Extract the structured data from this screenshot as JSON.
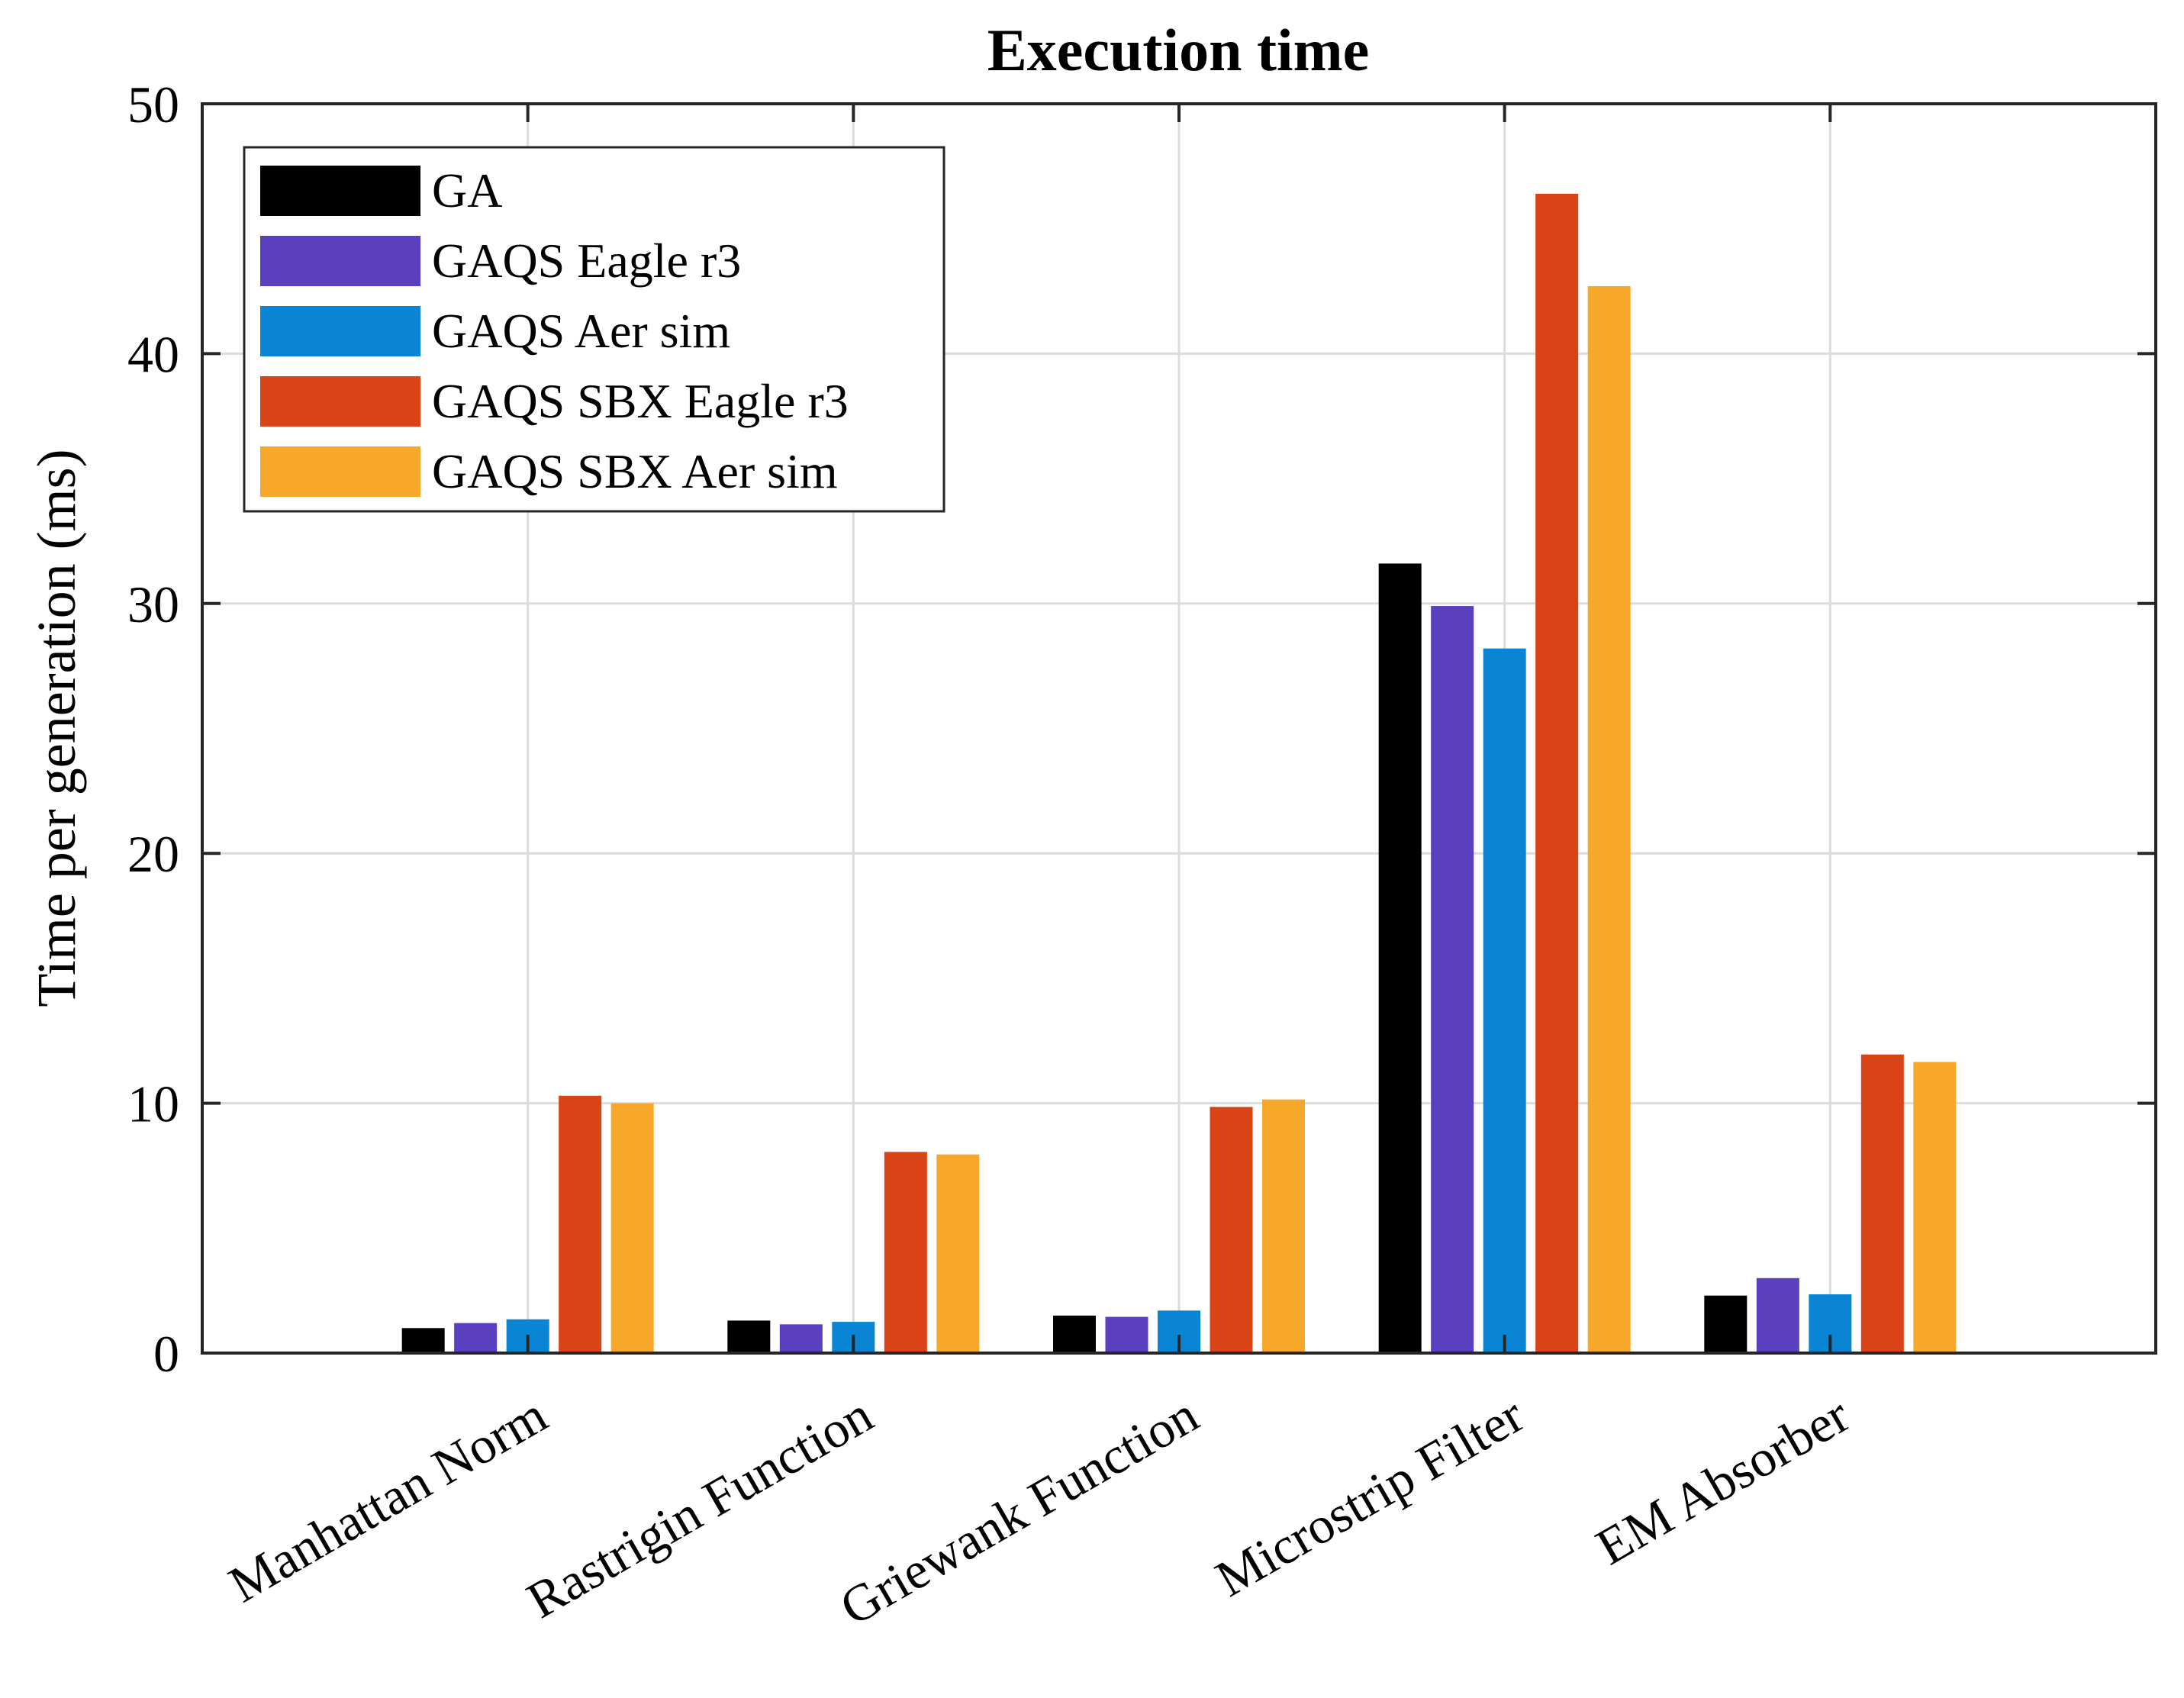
{
  "chart_data": {
    "type": "bar",
    "title": "Execution time",
    "xlabel": "",
    "ylabel": "Time per generation (ms)",
    "ylim": [
      0,
      50
    ],
    "yticks": [
      0,
      10,
      20,
      30,
      40,
      50
    ],
    "grid": true,
    "legend_position": "top-left",
    "categories": [
      "Manhattan Norm",
      "Rastrigin Function",
      "Griewank Function",
      "Microstrip Filter",
      "EM Absorber"
    ],
    "series": [
      {
        "name": "GA",
        "color": "#000000",
        "values": [
          1.0,
          1.3,
          1.5,
          31.6,
          2.3
        ]
      },
      {
        "name": "GAQS Eagle r3",
        "color": "#5a3fbf",
        "values": [
          1.2,
          1.15,
          1.45,
          29.9,
          3.0
        ]
      },
      {
        "name": "GAQS Aer sim",
        "color": "#0985d4",
        "values": [
          1.35,
          1.25,
          1.7,
          28.2,
          2.35
        ]
      },
      {
        "name": "GAQS SBX Eagle r3",
        "color": "#d84418",
        "values": [
          10.3,
          8.05,
          9.85,
          46.4,
          11.95
        ]
      },
      {
        "name": "GAQS SBX Aer sim",
        "color": "#f7a72a",
        "values": [
          10.0,
          7.95,
          10.15,
          42.7,
          11.65
        ]
      }
    ]
  }
}
